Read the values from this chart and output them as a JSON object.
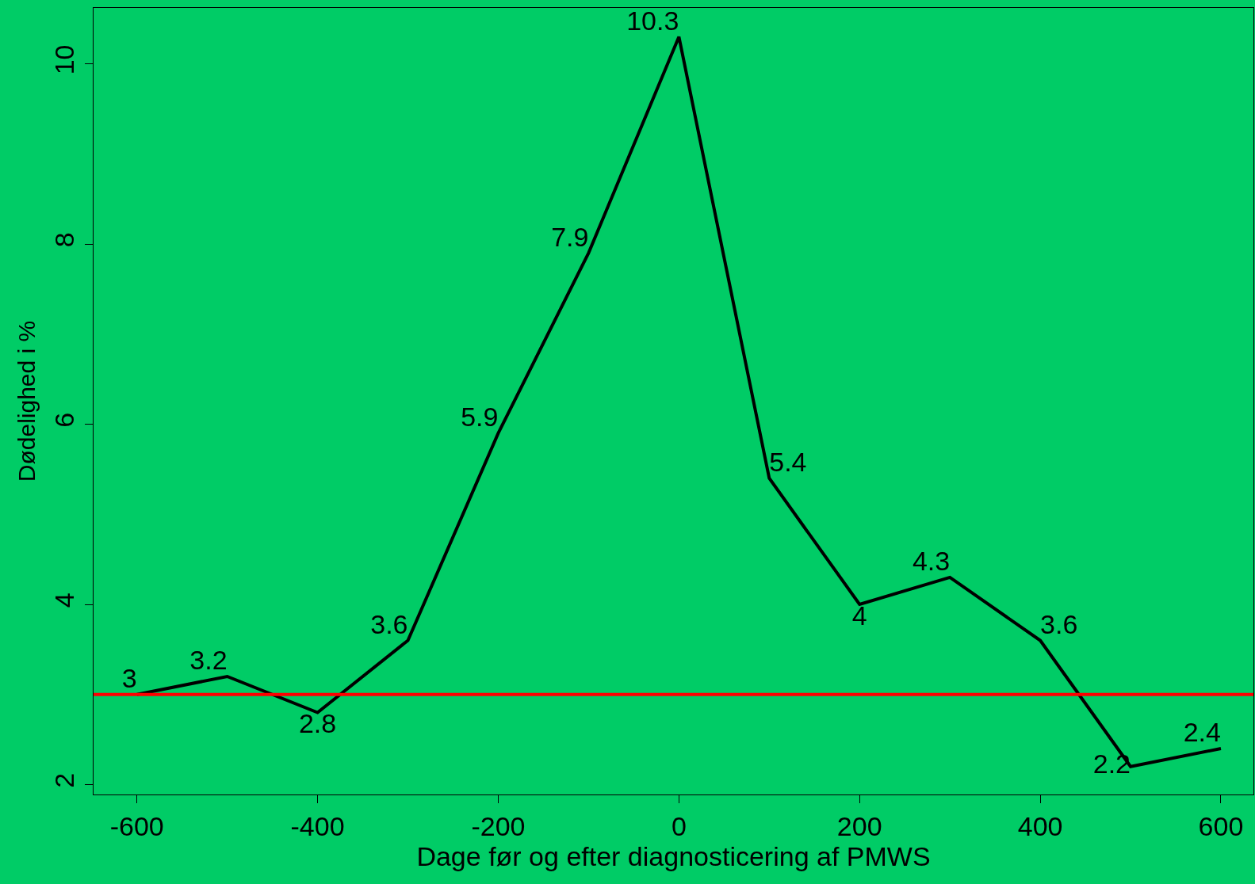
{
  "chart_data": {
    "type": "line",
    "xlabel": "Dage før og efter diagnosticering af PMWS",
    "ylabel": "Dødelighed i %",
    "x": [
      -600,
      -500,
      -400,
      -300,
      -200,
      -100,
      0,
      100,
      200,
      300,
      400,
      500,
      600
    ],
    "series": [
      {
        "color": "#000000",
        "values": [
          3,
          3.2,
          2.8,
          3.6,
          5.9,
          7.9,
          10.3,
          5.4,
          4,
          4.3,
          3.6,
          2.2,
          2.4
        ]
      }
    ],
    "data_labels": true,
    "xlim": [
      -648,
      636
    ],
    "xticks": [
      -600,
      -400,
      -200,
      0,
      200,
      400,
      600
    ],
    "ylim": [
      1.89,
      10.62
    ],
    "yticks": [
      2,
      4,
      6,
      8,
      10
    ],
    "ref_lines": [
      {
        "axis": "y",
        "value": 3,
        "color": "#ff0000"
      }
    ],
    "grid": false,
    "marker": "none",
    "line_style": "solid"
  }
}
